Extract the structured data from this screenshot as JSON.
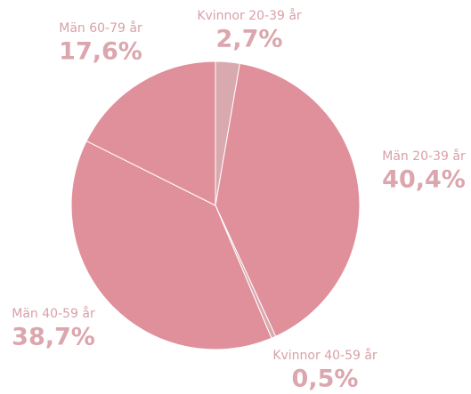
{
  "chart_data": {
    "type": "pie",
    "categories": [
      "Kvinnor 20-39 år",
      "Män 20-39 år",
      "Kvinnor 40-59 år",
      "Män 40-59 år",
      "Män 60-79 år"
    ],
    "values": [
      2.7,
      40.4,
      0.5,
      38.7,
      17.6
    ],
    "value_labels": [
      "2,7%",
      "40,4%",
      "0,5%",
      "38,7%",
      "17,6%"
    ],
    "colors": [
      "#d9a9b0",
      "#e0909a",
      "#d9a9b0",
      "#e0909a",
      "#e0909a"
    ]
  }
}
